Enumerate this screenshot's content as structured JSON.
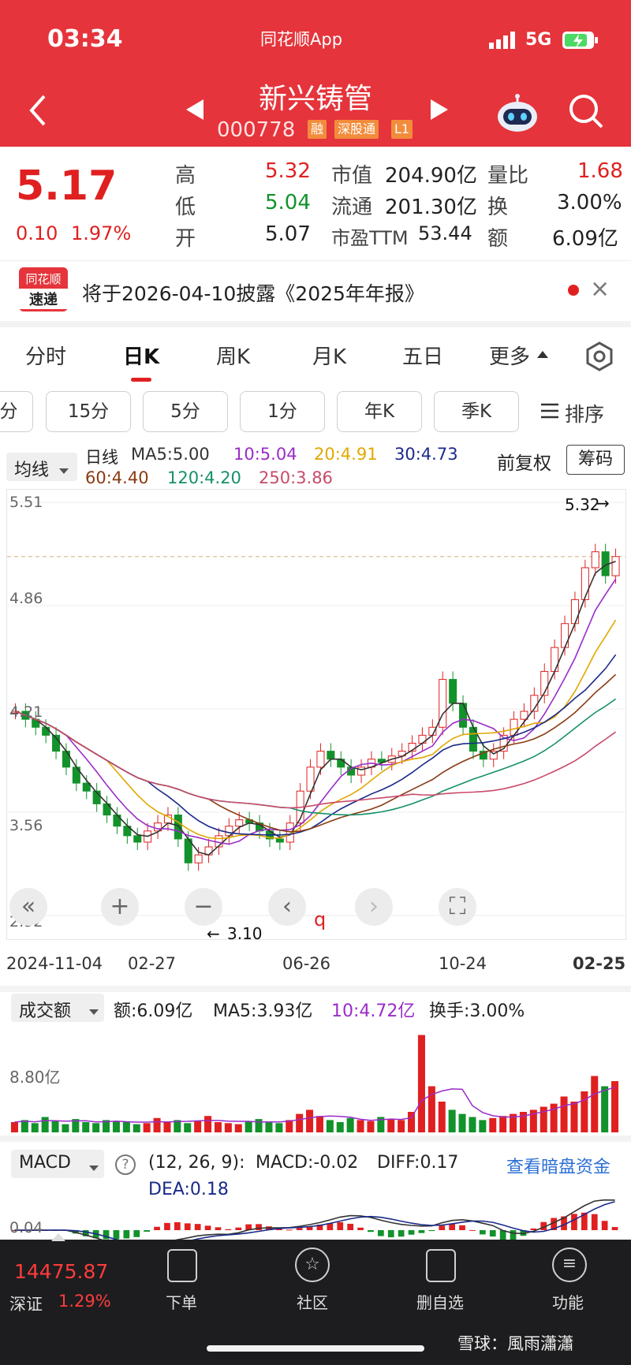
{
  "status_bar": {
    "time": "03:34",
    "app": "同花顺App",
    "network": "5G"
  },
  "header": {
    "title": "新兴铸管",
    "code": "000778",
    "tags": [
      "融",
      "深股通",
      "L1"
    ]
  },
  "quote": {
    "price": "5.17",
    "change": "0.10",
    "change_pct": "1.97%",
    "high_label": "高",
    "high": "5.32",
    "low_label": "低",
    "low": "5.04",
    "open_label": "开",
    "open": "5.07",
    "mcap_label": "市值",
    "mcap": "204.90亿",
    "float_label": "流通",
    "float": "201.30亿",
    "pe_label": "市盈TTM",
    "pe": "53.44",
    "vr_label": "量比",
    "vr": "1.68",
    "turn_label": "换",
    "turn": "3.00%",
    "amt_label": "额",
    "amt": "6.09亿"
  },
  "notice": {
    "logo_top": "同花顺",
    "logo_bottom": "速递",
    "text": "将于2026-04-10披露《2025年年报》"
  },
  "tabs": [
    "分时",
    "日K",
    "周K",
    "月K",
    "五日",
    "更多"
  ],
  "active_tab": "日K",
  "period_chips": [
    "分",
    "15分",
    "5分",
    "1分",
    "年K",
    "季K"
  ],
  "sort_label": "排序",
  "ma_bar": {
    "dropdown": "均线",
    "label": "日线",
    "ma5": "MA5:5.00",
    "ma10": "10:5.04",
    "ma20": "20:4.91",
    "ma30": "30:4.73",
    "ma60": "60:4.40",
    "ma120": "120:4.20",
    "ma250": "250:3.86",
    "adjust": "前复权",
    "chip_button": "筹码"
  },
  "chart_data": {
    "type": "candlestick",
    "y_ticks": [
      "5.51",
      "4.86",
      "4.21",
      "3.56",
      "2.92"
    ],
    "ylim": [
      2.92,
      5.51
    ],
    "x_labels": [
      "2024-11-04",
      "02-27",
      "06-26",
      "10-24",
      "02-25"
    ],
    "high_marker": "5.32",
    "low_marker": "3.10",
    "close_series": [
      4.2,
      4.15,
      4.1,
      4.05,
      3.95,
      3.85,
      3.75,
      3.7,
      3.62,
      3.55,
      3.48,
      3.42,
      3.38,
      3.45,
      3.5,
      3.55,
      3.4,
      3.25,
      3.3,
      3.35,
      3.42,
      3.48,
      3.52,
      3.5,
      3.45,
      3.4,
      3.38,
      3.5,
      3.7,
      3.85,
      3.95,
      3.9,
      3.85,
      3.8,
      3.85,
      3.9,
      3.88,
      3.92,
      3.95,
      4.0,
      4.05,
      4.1,
      4.4,
      4.25,
      4.1,
      3.95,
      3.9,
      3.95,
      4.05,
      4.15,
      4.2,
      4.3,
      4.45,
      4.6,
      4.75,
      4.9,
      5.1,
      5.2,
      5.05,
      5.17
    ],
    "ma_colors": {
      "ma5": "#333333",
      "ma10": "#9a2cc9",
      "ma20": "#e0a800",
      "ma30": "#1a2a8a",
      "ma60": "#8a3b12",
      "ma120": "#15906a",
      "ma250": "#c94a6a"
    }
  },
  "volume": {
    "dropdown": "成交额",
    "amount": "额:6.09亿",
    "ma5": "MA5:3.93亿",
    "ma10": "10:4.72亿",
    "turnover": "换手:3.00%",
    "y_tick": "8.80亿",
    "bars": [
      0.1,
      0.12,
      0.09,
      0.15,
      0.11,
      0.08,
      0.13,
      0.1,
      0.09,
      0.12,
      0.11,
      0.1,
      0.08,
      0.09,
      0.14,
      0.1,
      0.12,
      0.09,
      0.11,
      0.16,
      0.1,
      0.09,
      0.08,
      0.11,
      0.13,
      0.1,
      0.09,
      0.12,
      0.18,
      0.22,
      0.16,
      0.12,
      0.1,
      0.14,
      0.12,
      0.11,
      0.15,
      0.13,
      0.12,
      0.2,
      0.95,
      0.45,
      0.3,
      0.22,
      0.18,
      0.15,
      0.12,
      0.14,
      0.16,
      0.18,
      0.2,
      0.22,
      0.25,
      0.28,
      0.35,
      0.3,
      0.4,
      0.55,
      0.45,
      0.5
    ]
  },
  "macd": {
    "dropdown": "MACD",
    "help": "?",
    "params": "(12, 26, 9):",
    "macd": "MACD:-0.02",
    "diff": "DIFF:0.17",
    "dea": "DEA:0.18",
    "link": "查看暗盘资金",
    "y_tick": "0.04"
  },
  "bottom": {
    "index_value": "14475.87",
    "index_name": "深证",
    "index_change": "1.29%",
    "items": [
      "下单",
      "社区",
      "删自选",
      "功能"
    ],
    "watermark": "雪球：風雨瀟瀟"
  },
  "colors": {
    "brand_red": "#e5343b",
    "up": "#e02020",
    "down": "#12922b",
    "bar_bg": "#1d1d1f"
  }
}
